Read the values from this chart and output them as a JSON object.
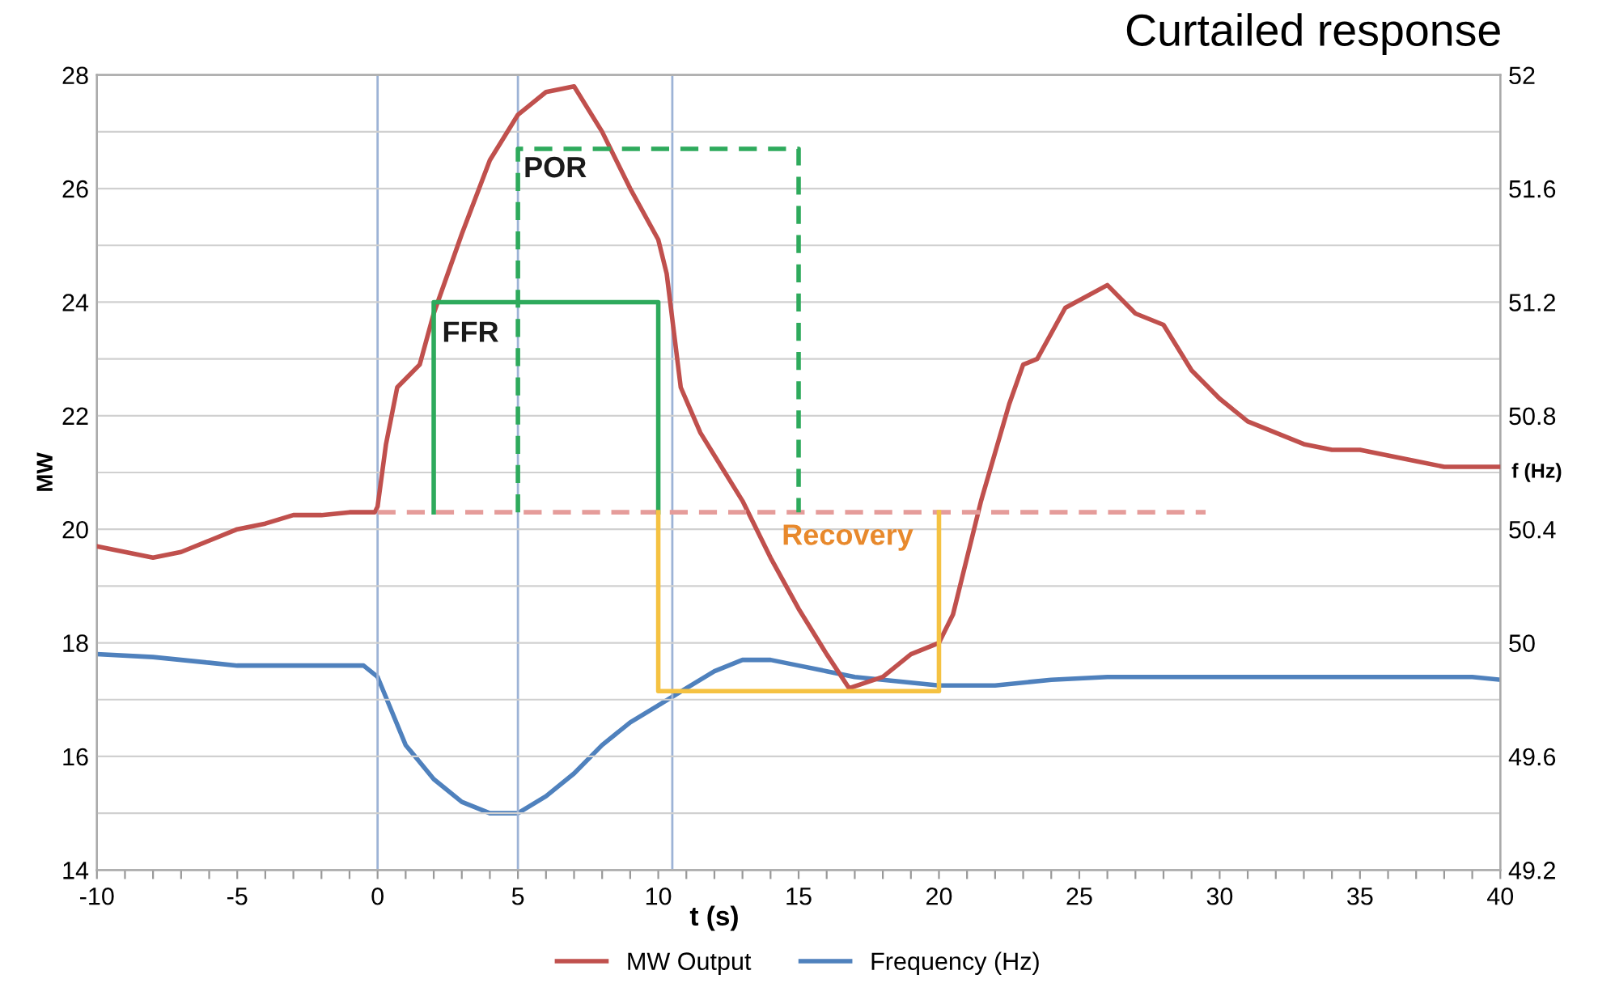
{
  "chart_data": {
    "type": "line",
    "title": "Curtailed response",
    "xlabel": "t (s)",
    "ylabel": "MW",
    "y2label": "f (Hz)",
    "xlim": [
      -10,
      40
    ],
    "xticks": [
      -10,
      {
        "value": -9,
        "label": null
      },
      {
        "value": -8,
        "label": null
      },
      {
        "value": -7,
        "label": null
      },
      {
        "value": -6,
        "label": null
      },
      -5,
      {
        "value": -4,
        "label": null
      },
      {
        "value": -3,
        "label": null
      },
      {
        "value": -2,
        "label": null
      },
      {
        "value": -1,
        "label": null
      },
      0,
      {
        "value": 1,
        "label": null
      },
      {
        "value": 2,
        "label": null
      },
      {
        "value": 3,
        "label": null
      },
      {
        "value": 4,
        "label": null
      },
      5,
      {
        "value": 6,
        "label": null
      },
      {
        "value": 7,
        "label": null
      },
      {
        "value": 8,
        "label": null
      },
      {
        "value": 9,
        "label": null
      },
      10,
      {
        "value": 11,
        "label": null
      },
      {
        "value": 12,
        "label": null
      },
      {
        "value": 13,
        "label": null
      },
      {
        "value": 14,
        "label": null
      },
      15,
      {
        "value": 16,
        "label": null
      },
      {
        "value": 17,
        "label": null
      },
      {
        "value": 18,
        "label": null
      },
      {
        "value": 19,
        "label": null
      },
      20,
      {
        "value": 21,
        "label": null
      },
      {
        "value": 22,
        "label": null
      },
      {
        "value": 23,
        "label": null
      },
      {
        "value": 24,
        "label": null
      },
      25,
      {
        "value": 26,
        "label": null
      },
      {
        "value": 27,
        "label": null
      },
      {
        "value": 28,
        "label": null
      },
      {
        "value": 29,
        "label": null
      },
      30,
      {
        "value": 31,
        "label": null
      },
      {
        "value": 32,
        "label": null
      },
      {
        "value": 33,
        "label": null
      },
      {
        "value": 34,
        "label": null
      },
      35,
      {
        "value": 36,
        "label": null
      },
      {
        "value": 37,
        "label": null
      },
      {
        "value": 38,
        "label": null
      },
      {
        "value": 39,
        "label": null
      },
      40
    ],
    "ylim": [
      14,
      28
    ],
    "yticks": [
      14,
      {
        "value": 15,
        "label": null
      },
      16,
      {
        "value": 17,
        "label": null
      },
      18,
      {
        "value": 19,
        "label": null
      },
      20,
      {
        "value": 21,
        "label": null
      },
      22,
      {
        "value": 23,
        "label": null
      },
      24,
      {
        "value": 25,
        "label": null
      },
      26,
      {
        "value": 27,
        "label": null
      },
      28
    ],
    "y2lim": [
      49.2,
      52
    ],
    "y2ticks": [
      49.2,
      49.6,
      50,
      50.4,
      50.8,
      51.2,
      51.6,
      52
    ],
    "grid": "y",
    "legend": "bottom",
    "marker": "none",
    "line_style": "solid",
    "series": [
      {
        "name": "MW Output",
        "color": "#c0504d",
        "axis": "y",
        "x": [
          -10,
          -9,
          -8,
          -7,
          -6,
          -5,
          -4,
          -3,
          -2,
          -1,
          -0.1,
          0,
          0.3,
          0.7,
          1.5,
          2,
          3,
          4,
          5,
          6,
          7,
          8,
          9,
          10,
          10.3,
          10.8,
          11.5,
          12,
          13,
          14,
          15,
          16,
          16.8,
          18,
          19,
          20,
          20.5,
          21.5,
          22.5,
          23,
          23.5,
          24.5,
          26,
          27,
          28,
          29,
          30,
          31,
          32,
          33,
          34,
          35,
          36,
          37,
          38,
          39,
          40
        ],
        "values": [
          19.7,
          19.6,
          19.5,
          19.6,
          19.8,
          20.0,
          20.1,
          20.25,
          20.25,
          20.3,
          20.3,
          20.4,
          21.5,
          22.5,
          22.9,
          23.8,
          25.2,
          26.5,
          27.3,
          27.7,
          27.8,
          27.0,
          26.0,
          25.1,
          24.5,
          22.5,
          21.7,
          21.3,
          20.5,
          19.5,
          18.6,
          17.8,
          17.2,
          17.4,
          17.8,
          18.0,
          18.5,
          20.5,
          22.2,
          22.9,
          23.0,
          23.9,
          24.3,
          23.8,
          23.6,
          22.8,
          22.3,
          21.9,
          21.7,
          21.5,
          21.4,
          21.4,
          21.3,
          21.2,
          21.1,
          21.1,
          21.1
        ]
      },
      {
        "name": "Frequency (Hz)",
        "color": "#4f81bd",
        "axis": "y2",
        "x": [
          -10,
          -8,
          -6,
          -5,
          -3,
          -0.5,
          0,
          1,
          2,
          3,
          4,
          5,
          6,
          7,
          8,
          9,
          10,
          11,
          12,
          13,
          14,
          15,
          16,
          17,
          18,
          19,
          20,
          22,
          24,
          26,
          30,
          35,
          39,
          40
        ],
        "values": [
          49.96,
          49.95,
          49.93,
          49.92,
          49.92,
          49.92,
          49.88,
          49.64,
          49.52,
          49.44,
          49.4,
          49.4,
          49.46,
          49.54,
          49.64,
          49.72,
          49.78,
          49.84,
          49.9,
          49.94,
          49.94,
          49.92,
          49.9,
          49.88,
          49.87,
          49.86,
          49.85,
          49.85,
          49.87,
          49.88,
          49.88,
          49.88,
          49.88,
          49.87
        ]
      },
      {
        "color": "#e59c9a",
        "axis": "y",
        "line_style": "dashed",
        "x": [
          0,
          29.5
        ],
        "values": [
          20.3,
          20.3
        ]
      },
      {
        "color": "#2eaa5c",
        "axis": "y",
        "x": [
          2,
          2,
          10,
          10
        ],
        "values": [
          20.3,
          24,
          24,
          20.3
        ]
      },
      {
        "color": "#2eaa5c",
        "axis": "y",
        "line_style": "dashed",
        "x": [
          5,
          5,
          15,
          15
        ],
        "values": [
          20.3,
          26.7,
          26.7,
          20.3
        ]
      },
      {
        "color": "#f5c242",
        "axis": "y",
        "x": [
          10,
          10,
          20,
          20
        ],
        "values": [
          20.3,
          17.15,
          17.15,
          20.3
        ]
      }
    ],
    "ref_lines": [
      {
        "axis": "x",
        "value": 0,
        "color": "#9db3d6"
      },
      {
        "axis": "x",
        "value": 5,
        "color": "#9db3d6"
      },
      {
        "axis": "x",
        "value": 10.5,
        "color": "#9db3d6"
      }
    ],
    "annotations": [
      {
        "text": "FFR",
        "x": 2.3,
        "y": 23.3
      },
      {
        "text": "POR",
        "x": 5.2,
        "y": 26.2
      },
      "Recovery"
    ]
  }
}
